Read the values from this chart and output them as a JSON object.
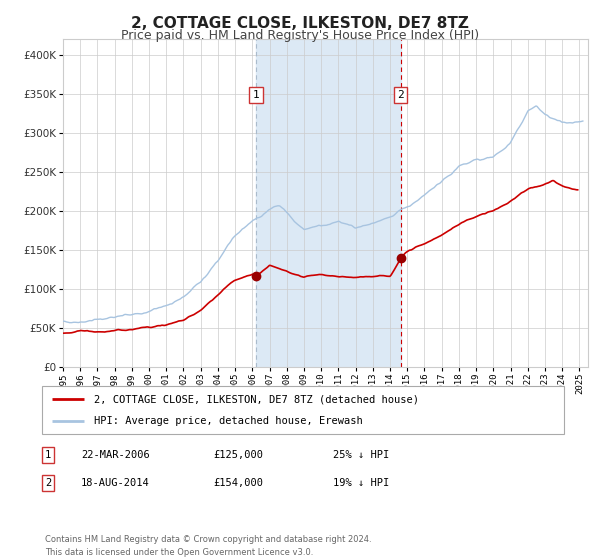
{
  "title": "2, COTTAGE CLOSE, ILKESTON, DE7 8TZ",
  "subtitle": "Price paid vs. HM Land Registry's House Price Index (HPI)",
  "ylim": [
    0,
    420000
  ],
  "yticks": [
    0,
    50000,
    100000,
    150000,
    200000,
    250000,
    300000,
    350000,
    400000
  ],
  "xlim_start": 1995.0,
  "xlim_end": 2025.5,
  "xtick_years": [
    1995,
    1996,
    1997,
    1998,
    1999,
    2000,
    2001,
    2002,
    2003,
    2004,
    2005,
    2006,
    2007,
    2008,
    2009,
    2010,
    2011,
    2012,
    2013,
    2014,
    2015,
    2016,
    2017,
    2018,
    2019,
    2020,
    2021,
    2022,
    2023,
    2024,
    2025
  ],
  "hpi_color": "#a8c4e0",
  "price_color": "#cc0000",
  "grid_color": "#cccccc",
  "background_color": "#ffffff",
  "shaded_region_color": "#dce9f5",
  "sale1_date": 2006.22,
  "sale1_price": 125000,
  "sale2_date": 2014.62,
  "sale2_price": 154000,
  "legend_label_price": "2, COTTAGE CLOSE, ILKESTON, DE7 8TZ (detached house)",
  "legend_label_hpi": "HPI: Average price, detached house, Erewash",
  "table_row1": [
    "1",
    "22-MAR-2006",
    "£125,000",
    "25% ↓ HPI"
  ],
  "table_row2": [
    "2",
    "18-AUG-2014",
    "£154,000",
    "19% ↓ HPI"
  ],
  "footer_text": "Contains HM Land Registry data © Crown copyright and database right 2024.\nThis data is licensed under the Open Government Licence v3.0."
}
